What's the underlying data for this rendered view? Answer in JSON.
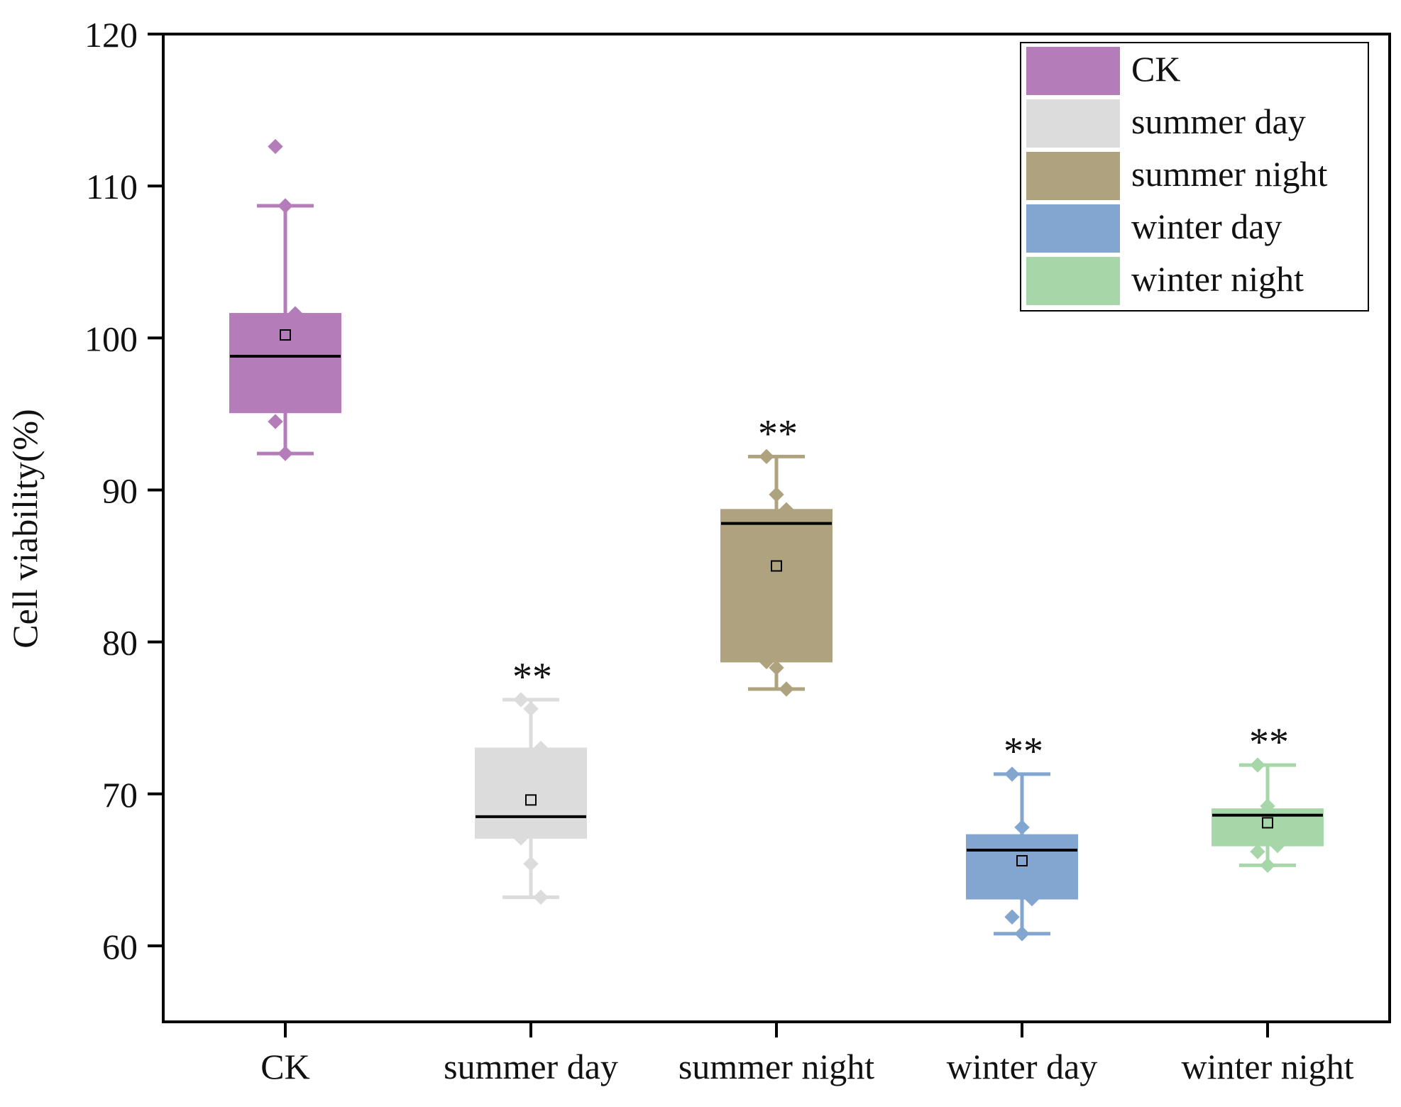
{
  "chart_data": {
    "type": "box",
    "title": "",
    "xlabel": "",
    "ylabel": "Cell viability(%)",
    "ylim": [
      55,
      120
    ],
    "yticks": [
      60,
      70,
      80,
      90,
      100,
      110,
      120
    ],
    "yticks_labels": [
      "60",
      "70",
      "80",
      "90",
      "100",
      "110",
      "120"
    ],
    "categories": [
      "CK",
      "summer day",
      "summer night",
      "winter day",
      "winter night"
    ],
    "legend": {
      "placement": "top-right",
      "entries": [
        "CK",
        "summer day",
        "summer night",
        "winter day",
        "winter night"
      ]
    },
    "series": [
      {
        "name": "CK",
        "color": "#b47cb8",
        "whisker_low": 92.4,
        "q1": 95.1,
        "median": 98.8,
        "q3": 101.6,
        "whisker_high": 108.7,
        "mean": 100.2,
        "points": [
          112.6,
          108.7,
          101.6,
          94.5,
          92.4
        ],
        "significance": ""
      },
      {
        "name": "summer day",
        "color": "#dcdcdc",
        "whisker_low": 63.2,
        "q1": 67.1,
        "median": 68.5,
        "q3": 73.0,
        "whisker_high": 76.2,
        "mean": 69.6,
        "points": [
          76.2,
          75.6,
          73.0,
          67.1,
          65.4,
          63.2
        ],
        "significance": "**"
      },
      {
        "name": "summer night",
        "color": "#afa37f",
        "whisker_low": 76.9,
        "q1": 78.7,
        "median": 87.8,
        "q3": 88.7,
        "whisker_high": 92.2,
        "mean": 85.0,
        "points": [
          92.2,
          89.7,
          88.7,
          78.7,
          78.3,
          76.9
        ],
        "significance": "**"
      },
      {
        "name": "winter day",
        "color": "#82a6d0",
        "whisker_low": 60.8,
        "q1": 63.1,
        "median": 66.3,
        "q3": 67.3,
        "whisker_high": 71.3,
        "mean": 65.6,
        "points": [
          71.3,
          67.8,
          63.1,
          61.9,
          60.8
        ],
        "significance": "**"
      },
      {
        "name": "winter night",
        "color": "#a7d6a8",
        "whisker_low": 65.3,
        "q1": 66.6,
        "median": 68.6,
        "q3": 69.0,
        "whisker_high": 71.9,
        "mean": 68.1,
        "points": [
          71.9,
          69.2,
          66.6,
          66.2,
          65.3
        ],
        "significance": "**"
      }
    ]
  }
}
